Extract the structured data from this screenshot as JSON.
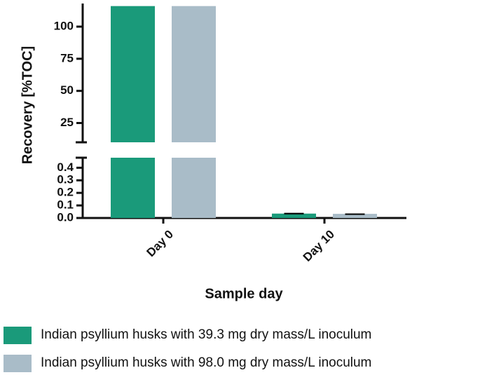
{
  "chart_data": {
    "type": "bar",
    "y_label": "Recovery [%TOC]",
    "x_label": "Sample day",
    "categories": [
      "Day 0",
      "Day 10"
    ],
    "series": [
      {
        "name": "Indian psyllium husks with 39.3 mg dry mass/L inoculum",
        "color": "#1a9a7a",
        "values": [
          116,
          0.035
        ],
        "errors": [
          null,
          0.006
        ]
      },
      {
        "name": "Indian psyllium husks with 98.0 mg dry mass/L inoculum",
        "color": "#a9bcc8",
        "values": [
          116,
          0.033
        ],
        "errors": [
          null,
          0.003
        ]
      }
    ],
    "ylim": [
      0,
      0.48
    ],
    "yticks": [
      {
        "value": 0,
        "label": "0.0"
      },
      0.1,
      0.2,
      0.3,
      0.4
    ],
    "y_break": {
      "ylim": [
        10,
        118
      ],
      "yticks": [
        25,
        50,
        75,
        100
      ]
    },
    "grid": false,
    "legend": "bottom"
  }
}
